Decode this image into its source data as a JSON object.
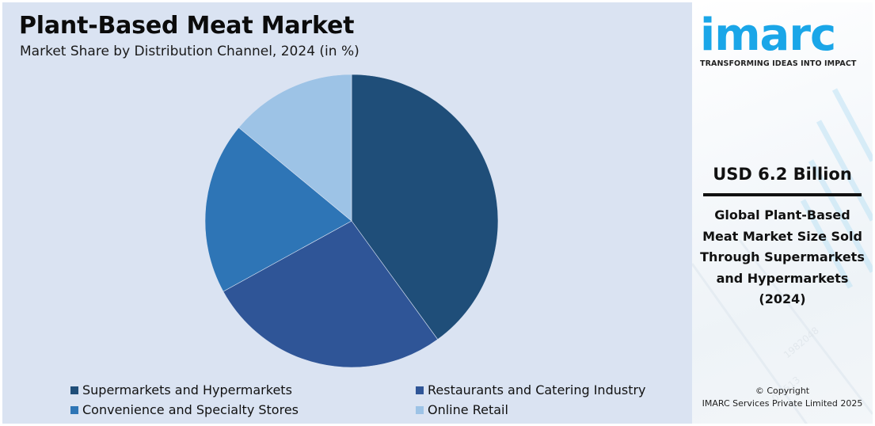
{
  "header": {
    "title": "Plant-Based Meat Market",
    "subtitle": "Market Share by Distribution Channel, 2024 (in %)"
  },
  "chart_data": {
    "type": "pie",
    "title": "Plant-Based Meat Market",
    "subtitle": "Market Share by Distribution Channel, 2024 (in %)",
    "categories": [
      "Supermarkets and Hypermarkets",
      "Restaurants and Catering Industry",
      "Convenience and Specialty Stores",
      "Online Retail"
    ],
    "values": [
      40,
      27,
      19,
      14
    ],
    "colors": [
      "#1f4e79",
      "#2f5597",
      "#2e75b6",
      "#9dc3e6"
    ],
    "start_angle": "12 o'clock, clockwise",
    "legend_position": "bottom"
  },
  "legend": {
    "items": [
      {
        "label": "Supermarkets and Hypermarkets",
        "color": "#1f4e79"
      },
      {
        "label": "Restaurants and Catering Industry",
        "color": "#2f5597"
      },
      {
        "label": "Convenience and Specialty Stores",
        "color": "#2e75b6"
      },
      {
        "label": "Online Retail",
        "color": "#9dc3e6"
      }
    ]
  },
  "sidebar": {
    "logo": "imarc",
    "tagline": "TRANSFORMING IDEAS INTO IMPACT",
    "kpi_value": "USD 6.2 Billion",
    "kpi_description": "Global Plant-Based Meat Market Size Sold Through Supermarkets and Hypermarkets (2024)",
    "kpi_lines": [
      "Global Plant-Based",
      "Meat Market Size Sold",
      "Through Supermarkets",
      "and Hypermarkets",
      "(2024)"
    ],
    "copyright_line1": "© Copyright",
    "copyright_line2": "IMARC Services Private Limited 2025",
    "brand_color": "#1aa6e8"
  }
}
